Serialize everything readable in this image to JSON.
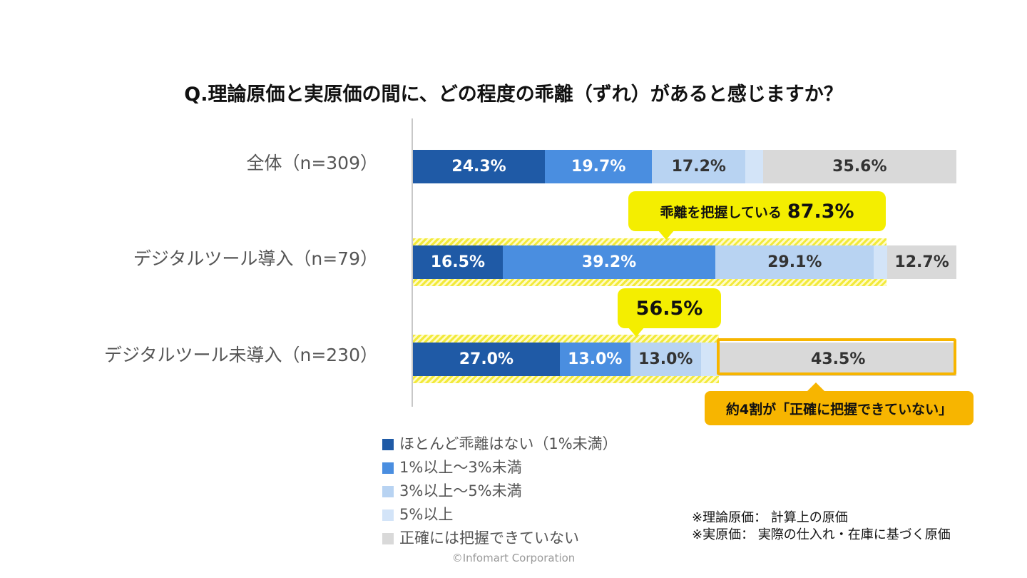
{
  "title": "Q.理論原価と実原価の間に、どの程度の乖離（ずれ）があると感じますか？",
  "colors": {
    "none": "#1f5aa6",
    "lt3": "#4a8ee0",
    "lt5": "#b8d3f2",
    "ge5": "#d3e4f8",
    "unknown": "#d9d9d9",
    "highlight_yellow": "#f4ee00",
    "highlight_orange": "#f7b500"
  },
  "chart_data": {
    "type": "bar",
    "orientation": "horizontal",
    "stacked": true,
    "xlim": [
      0,
      100
    ],
    "categories": [
      "全体（n=309）",
      "デジタルツール導入（n=79）",
      "デジタルツール未導入（n=230）"
    ],
    "series": [
      {
        "name": "ほとんど乖離はない（1%未満）",
        "values": [
          24.3,
          16.5,
          27.0
        ],
        "labels": [
          "24.3%",
          "16.5%",
          "27.0%"
        ]
      },
      {
        "name": "1%以上～3%未満",
        "values": [
          19.7,
          39.2,
          13.0
        ],
        "labels": [
          "19.7%",
          "39.2%",
          "13.0%"
        ]
      },
      {
        "name": "3%以上～5%未満",
        "values": [
          17.2,
          29.1,
          13.0
        ],
        "labels": [
          "17.2%",
          "29.1%",
          "13.0%"
        ]
      },
      {
        "name": "5%以上",
        "values": [
          3.2,
          2.5,
          3.5
        ],
        "labels": [
          "",
          "",
          ""
        ]
      },
      {
        "name": "正確には把握できていない",
        "values": [
          35.6,
          12.7,
          43.5
        ],
        "labels": [
          "35.6%",
          "12.7%",
          "43.5%"
        ]
      }
    ],
    "annotations": {
      "callout1_text": "乖離を把握している",
      "callout1_value": "87.3%",
      "callout2_value": "56.5%",
      "callout3_text": "約4割が「正確に把握できていない」"
    }
  },
  "notes": {
    "line1": "※理論原価： 計算上の原価",
    "line2": "※実原価： 実際の仕入れ・在庫に基づく原価"
  },
  "copyright": "©Infomart Corporation"
}
